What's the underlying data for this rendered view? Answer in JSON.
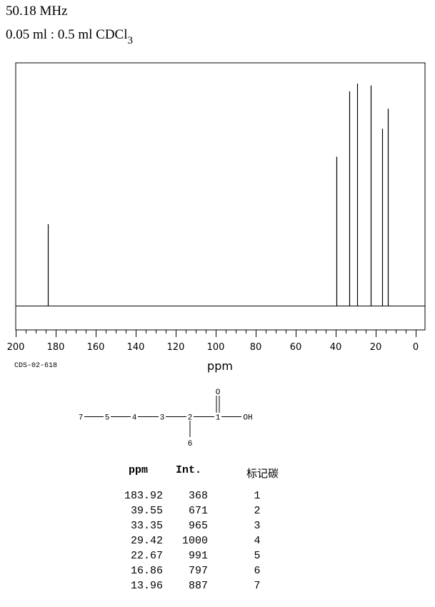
{
  "header": {
    "frequency": "50.18 MHz",
    "solvent_main": "0.05 ml : 0.5 ml CDCl",
    "solvent_sub": "3"
  },
  "spectrum_code": "CDS-02-618",
  "chart_data": {
    "type": "bar",
    "xlabel": "ppm",
    "xlim": [
      200,
      0
    ],
    "x_ticks": [
      200,
      180,
      160,
      140,
      120,
      100,
      80,
      60,
      40,
      20,
      0
    ],
    "peaks": [
      {
        "ppm": 183.92,
        "intensity": 368
      },
      {
        "ppm": 39.55,
        "intensity": 671
      },
      {
        "ppm": 33.35,
        "intensity": 965
      },
      {
        "ppm": 29.42,
        "intensity": 1000
      },
      {
        "ppm": 22.67,
        "intensity": 991
      },
      {
        "ppm": 16.86,
        "intensity": 797
      },
      {
        "ppm": 13.96,
        "intensity": 887
      }
    ],
    "grid": false
  },
  "molecule": {
    "atoms": [
      "7",
      "5",
      "4",
      "3",
      "2",
      "1",
      "OH",
      "O",
      "6"
    ]
  },
  "table": {
    "headers": {
      "ppm": "ppm",
      "int": "Int.",
      "label": "标记碳"
    },
    "rows": [
      {
        "ppm": "183.92",
        "int": "368",
        "label": "1"
      },
      {
        "ppm": "39.55",
        "int": "671",
        "label": "2"
      },
      {
        "ppm": "33.35",
        "int": "965",
        "label": "3"
      },
      {
        "ppm": "29.42",
        "int": "1000",
        "label": "4"
      },
      {
        "ppm": "22.67",
        "int": "991",
        "label": "5"
      },
      {
        "ppm": "16.86",
        "int": "797",
        "label": "6"
      },
      {
        "ppm": "13.96",
        "int": "887",
        "label": "7"
      }
    ]
  }
}
